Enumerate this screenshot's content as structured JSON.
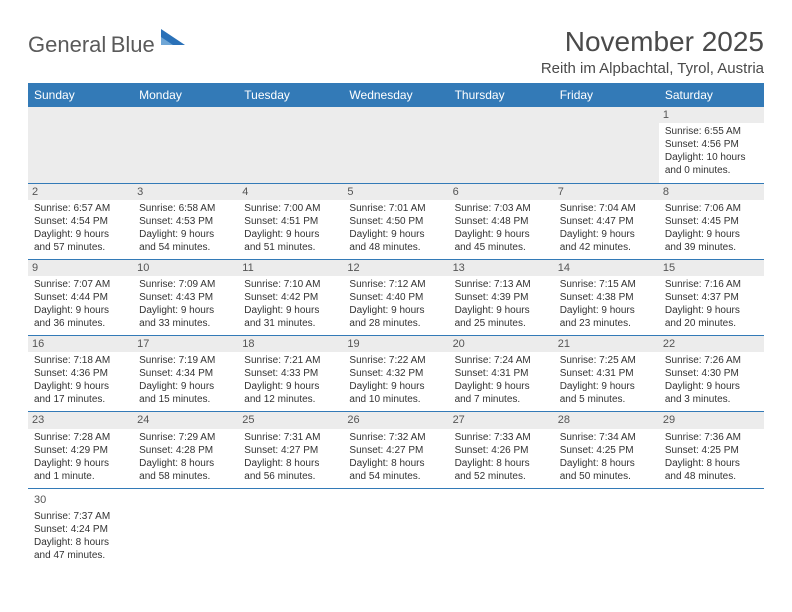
{
  "logo": {
    "text_general": "General",
    "text_blue": "Blue",
    "icon_color": "#2a71b8",
    "text_color_general": "#5a5a5a"
  },
  "title": "November 2025",
  "subtitle": "Reith im Alpbachtal, Tyrol, Austria",
  "header_bg": "#337ab7",
  "header_text_color": "#ffffff",
  "row_border_color": "#337ab7",
  "prefill_bg": "#ececec",
  "daynum_bg": "#ececec",
  "text_color": "#333333",
  "day_headers": [
    "Sunday",
    "Monday",
    "Tuesday",
    "Wednesday",
    "Thursday",
    "Friday",
    "Saturday"
  ],
  "cell_fontsize": 10,
  "header_fontsize": 12,
  "title_fontsize": 28,
  "subtitle_fontsize": 15,
  "weeks": [
    [
      null,
      null,
      null,
      null,
      null,
      null,
      {
        "n": "1",
        "sunrise": "Sunrise: 6:55 AM",
        "sunset": "Sunset: 4:56 PM",
        "d1": "Daylight: 10 hours",
        "d2": "and 0 minutes."
      }
    ],
    [
      {
        "n": "2",
        "sunrise": "Sunrise: 6:57 AM",
        "sunset": "Sunset: 4:54 PM",
        "d1": "Daylight: 9 hours",
        "d2": "and 57 minutes."
      },
      {
        "n": "3",
        "sunrise": "Sunrise: 6:58 AM",
        "sunset": "Sunset: 4:53 PM",
        "d1": "Daylight: 9 hours",
        "d2": "and 54 minutes."
      },
      {
        "n": "4",
        "sunrise": "Sunrise: 7:00 AM",
        "sunset": "Sunset: 4:51 PM",
        "d1": "Daylight: 9 hours",
        "d2": "and 51 minutes."
      },
      {
        "n": "5",
        "sunrise": "Sunrise: 7:01 AM",
        "sunset": "Sunset: 4:50 PM",
        "d1": "Daylight: 9 hours",
        "d2": "and 48 minutes."
      },
      {
        "n": "6",
        "sunrise": "Sunrise: 7:03 AM",
        "sunset": "Sunset: 4:48 PM",
        "d1": "Daylight: 9 hours",
        "d2": "and 45 minutes."
      },
      {
        "n": "7",
        "sunrise": "Sunrise: 7:04 AM",
        "sunset": "Sunset: 4:47 PM",
        "d1": "Daylight: 9 hours",
        "d2": "and 42 minutes."
      },
      {
        "n": "8",
        "sunrise": "Sunrise: 7:06 AM",
        "sunset": "Sunset: 4:45 PM",
        "d1": "Daylight: 9 hours",
        "d2": "and 39 minutes."
      }
    ],
    [
      {
        "n": "9",
        "sunrise": "Sunrise: 7:07 AM",
        "sunset": "Sunset: 4:44 PM",
        "d1": "Daylight: 9 hours",
        "d2": "and 36 minutes."
      },
      {
        "n": "10",
        "sunrise": "Sunrise: 7:09 AM",
        "sunset": "Sunset: 4:43 PM",
        "d1": "Daylight: 9 hours",
        "d2": "and 33 minutes."
      },
      {
        "n": "11",
        "sunrise": "Sunrise: 7:10 AM",
        "sunset": "Sunset: 4:42 PM",
        "d1": "Daylight: 9 hours",
        "d2": "and 31 minutes."
      },
      {
        "n": "12",
        "sunrise": "Sunrise: 7:12 AM",
        "sunset": "Sunset: 4:40 PM",
        "d1": "Daylight: 9 hours",
        "d2": "and 28 minutes."
      },
      {
        "n": "13",
        "sunrise": "Sunrise: 7:13 AM",
        "sunset": "Sunset: 4:39 PM",
        "d1": "Daylight: 9 hours",
        "d2": "and 25 minutes."
      },
      {
        "n": "14",
        "sunrise": "Sunrise: 7:15 AM",
        "sunset": "Sunset: 4:38 PM",
        "d1": "Daylight: 9 hours",
        "d2": "and 23 minutes."
      },
      {
        "n": "15",
        "sunrise": "Sunrise: 7:16 AM",
        "sunset": "Sunset: 4:37 PM",
        "d1": "Daylight: 9 hours",
        "d2": "and 20 minutes."
      }
    ],
    [
      {
        "n": "16",
        "sunrise": "Sunrise: 7:18 AM",
        "sunset": "Sunset: 4:36 PM",
        "d1": "Daylight: 9 hours",
        "d2": "and 17 minutes."
      },
      {
        "n": "17",
        "sunrise": "Sunrise: 7:19 AM",
        "sunset": "Sunset: 4:34 PM",
        "d1": "Daylight: 9 hours",
        "d2": "and 15 minutes."
      },
      {
        "n": "18",
        "sunrise": "Sunrise: 7:21 AM",
        "sunset": "Sunset: 4:33 PM",
        "d1": "Daylight: 9 hours",
        "d2": "and 12 minutes."
      },
      {
        "n": "19",
        "sunrise": "Sunrise: 7:22 AM",
        "sunset": "Sunset: 4:32 PM",
        "d1": "Daylight: 9 hours",
        "d2": "and 10 minutes."
      },
      {
        "n": "20",
        "sunrise": "Sunrise: 7:24 AM",
        "sunset": "Sunset: 4:31 PM",
        "d1": "Daylight: 9 hours",
        "d2": "and 7 minutes."
      },
      {
        "n": "21",
        "sunrise": "Sunrise: 7:25 AM",
        "sunset": "Sunset: 4:31 PM",
        "d1": "Daylight: 9 hours",
        "d2": "and 5 minutes."
      },
      {
        "n": "22",
        "sunrise": "Sunrise: 7:26 AM",
        "sunset": "Sunset: 4:30 PM",
        "d1": "Daylight: 9 hours",
        "d2": "and 3 minutes."
      }
    ],
    [
      {
        "n": "23",
        "sunrise": "Sunrise: 7:28 AM",
        "sunset": "Sunset: 4:29 PM",
        "d1": "Daylight: 9 hours",
        "d2": "and 1 minute."
      },
      {
        "n": "24",
        "sunrise": "Sunrise: 7:29 AM",
        "sunset": "Sunset: 4:28 PM",
        "d1": "Daylight: 8 hours",
        "d2": "and 58 minutes."
      },
      {
        "n": "25",
        "sunrise": "Sunrise: 7:31 AM",
        "sunset": "Sunset: 4:27 PM",
        "d1": "Daylight: 8 hours",
        "d2": "and 56 minutes."
      },
      {
        "n": "26",
        "sunrise": "Sunrise: 7:32 AM",
        "sunset": "Sunset: 4:27 PM",
        "d1": "Daylight: 8 hours",
        "d2": "and 54 minutes."
      },
      {
        "n": "27",
        "sunrise": "Sunrise: 7:33 AM",
        "sunset": "Sunset: 4:26 PM",
        "d1": "Daylight: 8 hours",
        "d2": "and 52 minutes."
      },
      {
        "n": "28",
        "sunrise": "Sunrise: 7:34 AM",
        "sunset": "Sunset: 4:25 PM",
        "d1": "Daylight: 8 hours",
        "d2": "and 50 minutes."
      },
      {
        "n": "29",
        "sunrise": "Sunrise: 7:36 AM",
        "sunset": "Sunset: 4:25 PM",
        "d1": "Daylight: 8 hours",
        "d2": "and 48 minutes."
      }
    ],
    [
      {
        "n": "30",
        "sunrise": "Sunrise: 7:37 AM",
        "sunset": "Sunset: 4:24 PM",
        "d1": "Daylight: 8 hours",
        "d2": "and 47 minutes."
      },
      null,
      null,
      null,
      null,
      null,
      null
    ]
  ]
}
